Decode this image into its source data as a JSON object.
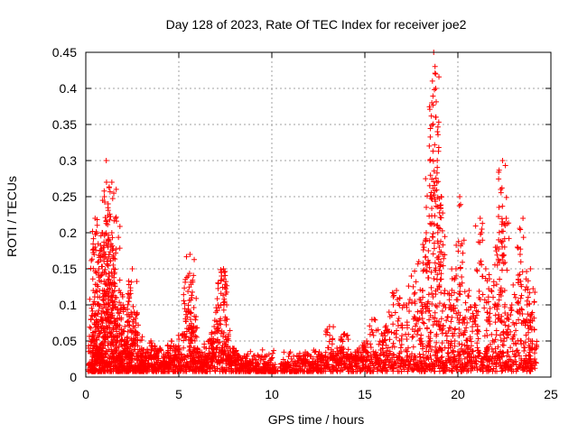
{
  "chart_data": {
    "type": "scatter",
    "title": "Day 128 of 2023, Rate Of TEC Index for receiver joe2",
    "xlabel": "GPS time / hours",
    "ylabel": "ROTI / TECUs",
    "xlim": [
      0,
      25
    ],
    "ylim": [
      0,
      0.45
    ],
    "xticks": [
      0,
      5,
      10,
      15,
      20,
      25
    ],
    "xtick_labels": [
      "0",
      "5",
      "10",
      "15",
      "20",
      "25"
    ],
    "yticks": [
      0,
      0.05,
      0.1,
      0.15,
      0.2,
      0.25,
      0.3,
      0.35,
      0.4,
      0.45
    ],
    "ytick_labels": [
      "0",
      "0.05",
      "0.1",
      "0.15",
      "0.2",
      "0.25",
      "0.3",
      "0.35",
      "0.4",
      "0.45"
    ],
    "grid": true,
    "marker": "plus",
    "color": "#ff0000",
    "series": [
      {
        "values_summary": "dense point cloud; representative samples",
        "points": [
          [
            0.3,
            0.02
          ],
          [
            0.4,
            0.06
          ],
          [
            0.4,
            0.12
          ],
          [
            0.5,
            0.18
          ],
          [
            0.5,
            0.22
          ],
          [
            0.6,
            0.04
          ],
          [
            0.7,
            0.1
          ],
          [
            0.7,
            0.15
          ],
          [
            0.8,
            0.08
          ],
          [
            0.9,
            0.2
          ],
          [
            1.0,
            0.12
          ],
          [
            1.0,
            0.25
          ],
          [
            1.1,
            0.3
          ],
          [
            1.2,
            0.18
          ],
          [
            1.2,
            0.24
          ],
          [
            1.3,
            0.1
          ],
          [
            1.4,
            0.27
          ],
          [
            1.4,
            0.2
          ],
          [
            1.5,
            0.15
          ],
          [
            1.6,
            0.22
          ],
          [
            1.7,
            0.08
          ],
          [
            1.8,
            0.12
          ],
          [
            1.9,
            0.05
          ],
          [
            2.0,
            0.1
          ],
          [
            2.1,
            0.07
          ],
          [
            2.2,
            0.04
          ],
          [
            2.4,
            0.12
          ],
          [
            2.5,
            0.15
          ],
          [
            2.6,
            0.09
          ],
          [
            2.8,
            0.06
          ],
          [
            3.0,
            0.04
          ],
          [
            3.2,
            0.03
          ],
          [
            3.5,
            0.05
          ],
          [
            3.8,
            0.02
          ],
          [
            4.0,
            0.04
          ],
          [
            4.3,
            0.03
          ],
          [
            4.6,
            0.05
          ],
          [
            4.9,
            0.04
          ],
          [
            5.2,
            0.06
          ],
          [
            5.5,
            0.14
          ],
          [
            5.6,
            0.17
          ],
          [
            5.7,
            0.11
          ],
          [
            5.8,
            0.07
          ],
          [
            6.0,
            0.04
          ],
          [
            6.3,
            0.03
          ],
          [
            6.6,
            0.05
          ],
          [
            6.9,
            0.07
          ],
          [
            7.1,
            0.1
          ],
          [
            7.3,
            0.14
          ],
          [
            7.4,
            0.15
          ],
          [
            7.6,
            0.08
          ],
          [
            7.9,
            0.04
          ],
          [
            8.2,
            0.03
          ],
          [
            8.6,
            0.02
          ],
          [
            9.0,
            0.02
          ],
          [
            9.4,
            0.01
          ],
          [
            9.8,
            0.02
          ],
          [
            10.1,
            0.01
          ],
          [
            10.7,
            0.02
          ],
          [
            11.2,
            0.01
          ],
          [
            11.7,
            0.03
          ],
          [
            12.2,
            0.02
          ],
          [
            12.7,
            0.03
          ],
          [
            13.1,
            0.07
          ],
          [
            13.5,
            0.04
          ],
          [
            13.9,
            0.06
          ],
          [
            14.3,
            0.03
          ],
          [
            14.7,
            0.04
          ],
          [
            15.1,
            0.05
          ],
          [
            15.5,
            0.08
          ],
          [
            15.9,
            0.06
          ],
          [
            16.3,
            0.09
          ],
          [
            16.7,
            0.12
          ],
          [
            17.1,
            0.1
          ],
          [
            17.5,
            0.14
          ],
          [
            17.9,
            0.16
          ],
          [
            18.1,
            0.12
          ],
          [
            18.3,
            0.2
          ],
          [
            18.5,
            0.3
          ],
          [
            18.6,
            0.38
          ],
          [
            18.7,
            0.45
          ],
          [
            18.8,
            0.42
          ],
          [
            18.9,
            0.34
          ],
          [
            19.0,
            0.18
          ],
          [
            19.1,
            0.25
          ],
          [
            19.3,
            0.12
          ],
          [
            19.6,
            0.1
          ],
          [
            19.9,
            0.15
          ],
          [
            20.1,
            0.25
          ],
          [
            20.3,
            0.08
          ],
          [
            20.6,
            0.12
          ],
          [
            20.9,
            0.1
          ],
          [
            21.2,
            0.22
          ],
          [
            21.5,
            0.15
          ],
          [
            21.8,
            0.12
          ],
          [
            22.1,
            0.18
          ],
          [
            22.3,
            0.26
          ],
          [
            22.4,
            0.3
          ],
          [
            22.6,
            0.22
          ],
          [
            22.9,
            0.1
          ],
          [
            23.2,
            0.18
          ],
          [
            23.5,
            0.22
          ],
          [
            23.7,
            0.08
          ],
          [
            23.9,
            0.15
          ],
          [
            24.0,
            0.05
          ]
        ]
      }
    ]
  }
}
